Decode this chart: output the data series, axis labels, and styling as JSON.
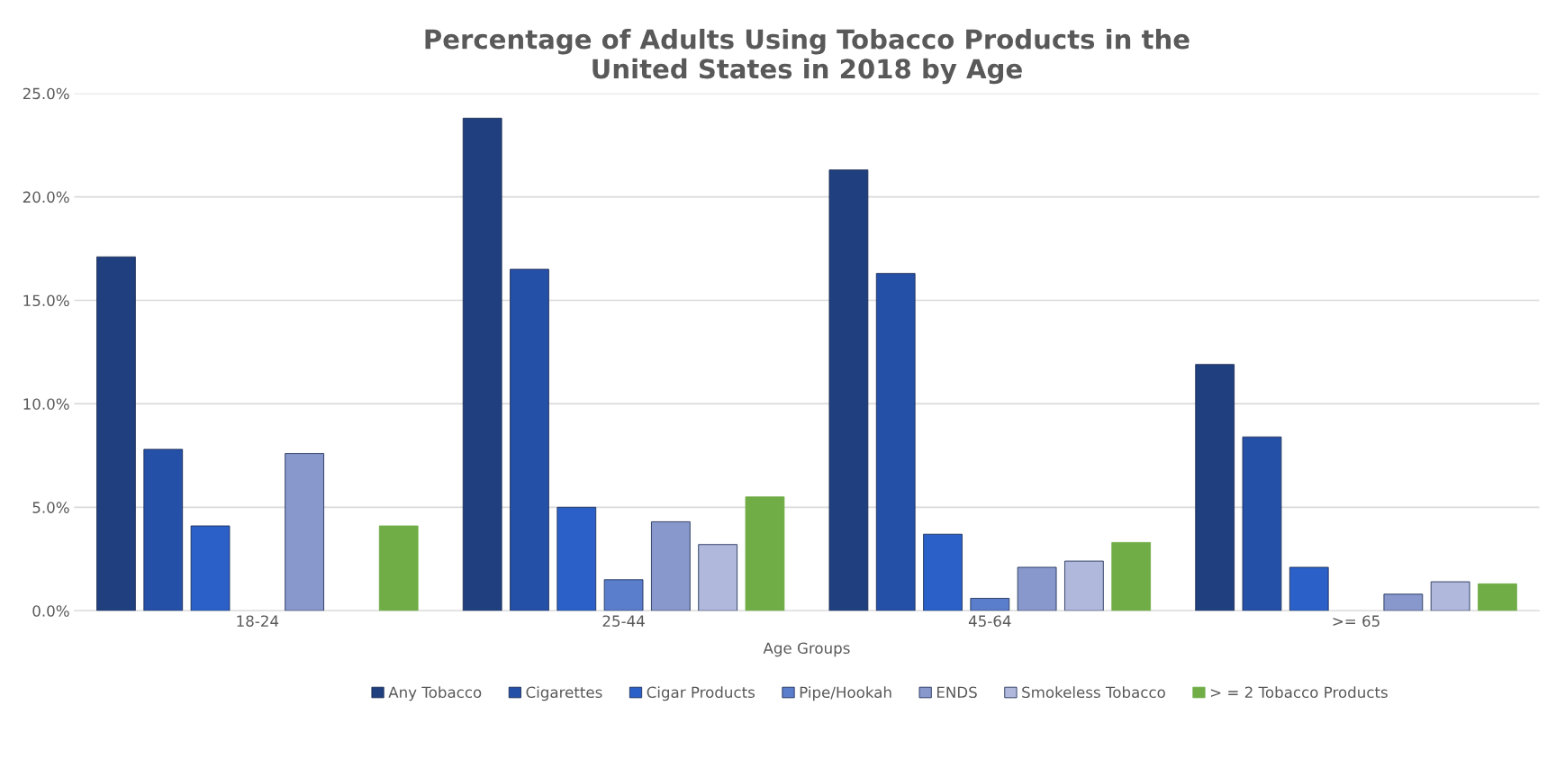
{
  "chart_data": {
    "type": "bar",
    "title": "Percentage of Adults Using Tobacco Products in the\nUnited States in 2018 by Age",
    "xlabel": "Age Groups",
    "categories": [
      "18-24",
      "25-44",
      "45-64",
      ">= 65"
    ],
    "series": [
      {
        "name": "Any Tobacco",
        "color": "#1f3f7f",
        "values": [
          17.1,
          23.8,
          21.3,
          11.9
        ]
      },
      {
        "name": "Cigarettes",
        "color": "#2550a8",
        "values": [
          7.8,
          16.5,
          16.3,
          8.4
        ]
      },
      {
        "name": "Cigar Products",
        "color": "#2a60c8",
        "values": [
          4.1,
          5.0,
          3.7,
          2.1
        ]
      },
      {
        "name": "Pipe/Hookah",
        "color": "#5a7ecc",
        "values": [
          null,
          1.5,
          0.6,
          null
        ]
      },
      {
        "name": "ENDS",
        "color": "#8898cc",
        "values": [
          7.6,
          4.3,
          2.1,
          0.8
        ]
      },
      {
        "name": "Smokeless Tobacco",
        "color": "#b0b8dc",
        "values": [
          null,
          3.2,
          2.4,
          1.4
        ]
      },
      {
        "name": "> = 2 Tobacco Products",
        "color": "#70ad47",
        "values": [
          4.1,
          5.5,
          3.3,
          1.3
        ]
      }
    ],
    "ylim": [
      0,
      25
    ],
    "yticks": [
      {
        "value": 0,
        "label": "0.0%"
      },
      {
        "value": 5,
        "label": "5.0%"
      },
      {
        "value": 10,
        "label": "10.0%"
      },
      {
        "value": 15,
        "label": "15.0%"
      },
      {
        "value": 20,
        "label": "20.0%"
      },
      {
        "value": 25,
        "label": "25.0%"
      }
    ],
    "grid": "y",
    "legend": "bottom"
  }
}
